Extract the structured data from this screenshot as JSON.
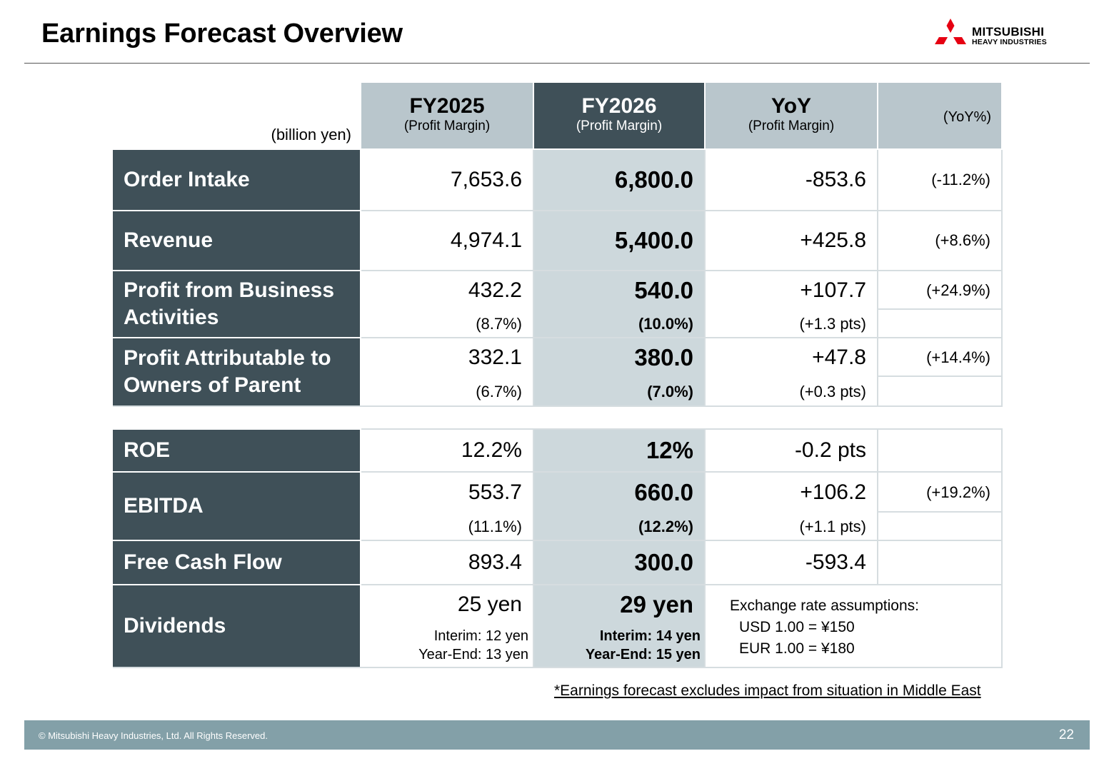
{
  "title": "Earnings Forecast Overview",
  "logo": {
    "line1": "MITSUBISHI",
    "line2": "HEAVY INDUSTRIES",
    "mark_color": "#e60012"
  },
  "unit_label": "(billion yen)",
  "headers": {
    "fy2025": {
      "title": "FY2025",
      "sub": "(Profit Margin)"
    },
    "fy2026": {
      "title": "FY2026",
      "sub": "(Profit Margin)"
    },
    "yoy": {
      "title": "YoY",
      "sub": "(Profit Margin)"
    },
    "yoy_pct": "(YoY%)"
  },
  "rows": {
    "order_intake": {
      "label": "Order Intake",
      "fy2025": "7,653.6",
      "fy2026": "6,800.0",
      "yoy": "-853.6",
      "yoy_pct": "(-11.2%)"
    },
    "revenue": {
      "label": "Revenue",
      "fy2025": "4,974.1",
      "fy2026": "5,400.0",
      "yoy": "+425.8",
      "yoy_pct": "(+8.6%)"
    },
    "profit_business": {
      "label": "Profit from Business Activities",
      "fy2025": "432.2",
      "fy2026": "540.0",
      "yoy": "+107.7",
      "yoy_pct": "(+24.9%)",
      "fy2025_margin": "(8.7%)",
      "fy2026_margin": "(10.0%)",
      "yoy_margin": "(+1.3 pts)"
    },
    "profit_owners": {
      "label": "Profit Attributable to Owners of Parent",
      "fy2025": "332.1",
      "fy2026": "380.0",
      "yoy": "+47.8",
      "yoy_pct": "(+14.4%)",
      "fy2025_margin": "(6.7%)",
      "fy2026_margin": "(7.0%)",
      "yoy_margin": "(+0.3 pts)"
    },
    "roe": {
      "label": "ROE",
      "fy2025": "12.2%",
      "fy2026": "12%",
      "yoy": "-0.2 pts"
    },
    "ebitda": {
      "label": "EBITDA",
      "fy2025": "553.7",
      "fy2026": "660.0",
      "yoy": "+106.2",
      "yoy_pct": "(+19.2%)",
      "fy2025_margin": "(11.1%)",
      "fy2026_margin": "(12.2%)",
      "yoy_margin": "(+1.1 pts)"
    },
    "fcf": {
      "label": "Free Cash Flow",
      "fy2025": "893.4",
      "fy2026": "300.0",
      "yoy": "-593.4"
    },
    "dividends": {
      "label": "Dividends",
      "fy2025": "25 yen",
      "fy2026": "29 yen",
      "fy2025_interim": "Interim: 12 yen",
      "fy2025_yearend": "Year-End: 13 yen",
      "fy2026_interim": "Interim: 14 yen",
      "fy2026_yearend": "Year-End: 15 yen"
    }
  },
  "fx": {
    "title": "Exchange rate assumptions:",
    "usd": "USD 1.00 = ¥150",
    "eur": "EUR 1.00 = ¥180"
  },
  "note": "*Earnings forecast excludes impact from situation in Middle East",
  "footer": {
    "copyright": "© Mitsubishi Heavy Industries, Ltd.  All Rights Reserved.",
    "page": "22"
  }
}
